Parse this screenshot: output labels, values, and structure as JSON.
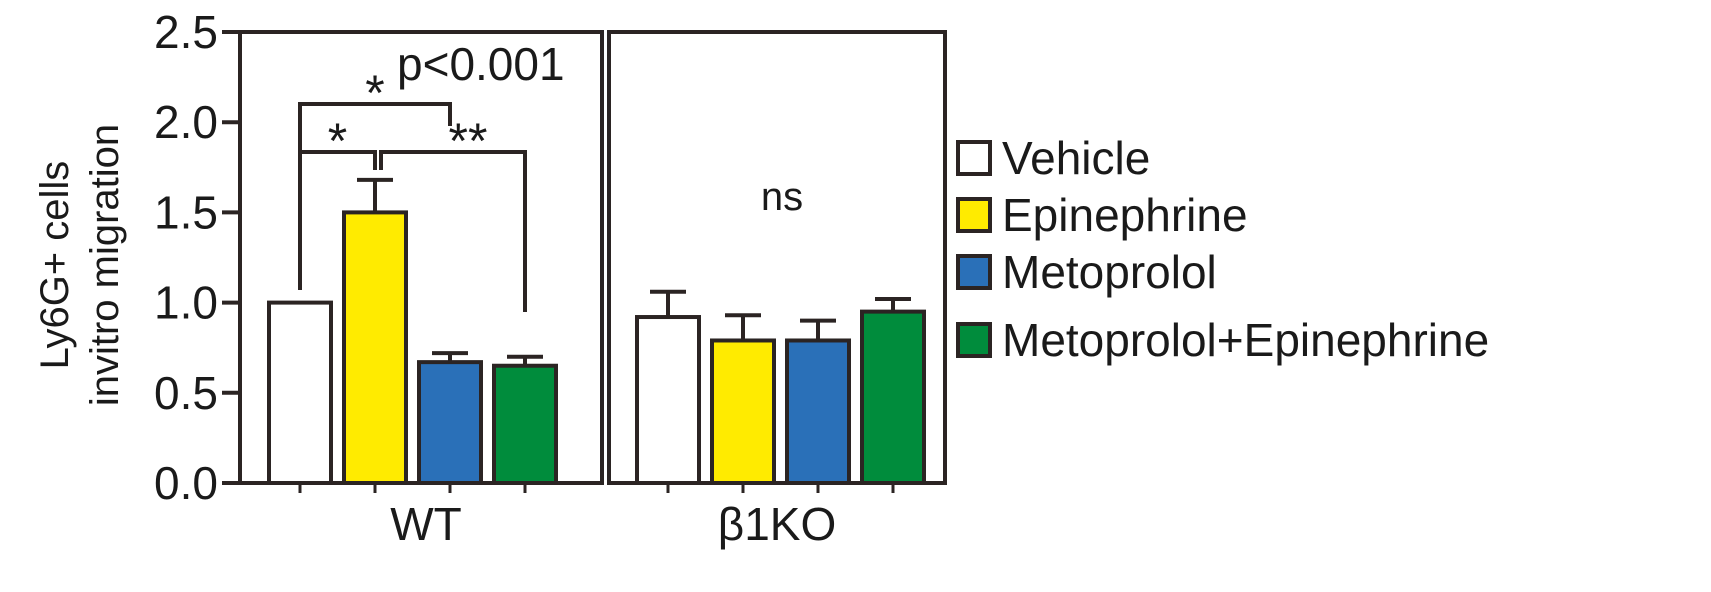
{
  "chart_data": {
    "type": "bar",
    "ylabel_lines": [
      "Ly6G+ cells",
      "invitro migration"
    ],
    "ylim": [
      0,
      2.5
    ],
    "yticks": [
      "0.0",
      "0.5",
      "1.0",
      "1.5",
      "2.0",
      "2.5"
    ],
    "ytick_values": [
      0,
      0.5,
      1.0,
      1.5,
      2.0,
      2.5
    ],
    "grid": false,
    "legend_position": "right",
    "series": [
      {
        "name": "Vehicle",
        "color": "#ffffff"
      },
      {
        "name": "Epinephrine",
        "color": "#ffeb00"
      },
      {
        "name": "Metoprolol",
        "color": "#2a70b8"
      },
      {
        "name": "Metoprolol+Epinephrine",
        "color": "#008c3c"
      }
    ],
    "panels": [
      {
        "label": "WT",
        "values": [
          1.0,
          1.5,
          0.67,
          0.65
        ],
        "errors": [
          0,
          0.18,
          0.05,
          0.05
        ],
        "annotations": [
          {
            "text": "p<0.001"
          },
          {
            "text": "*",
            "between": [
              0,
              2
            ]
          },
          {
            "text": "*",
            "between": [
              0,
              1
            ]
          },
          {
            "text": "**",
            "between": [
              1,
              3
            ]
          }
        ]
      },
      {
        "label": "β1KO",
        "values": [
          0.92,
          0.79,
          0.79,
          0.95
        ],
        "errors": [
          0.14,
          0.14,
          0.11,
          0.07
        ],
        "annotations": [
          {
            "text": "ns"
          }
        ]
      }
    ]
  }
}
